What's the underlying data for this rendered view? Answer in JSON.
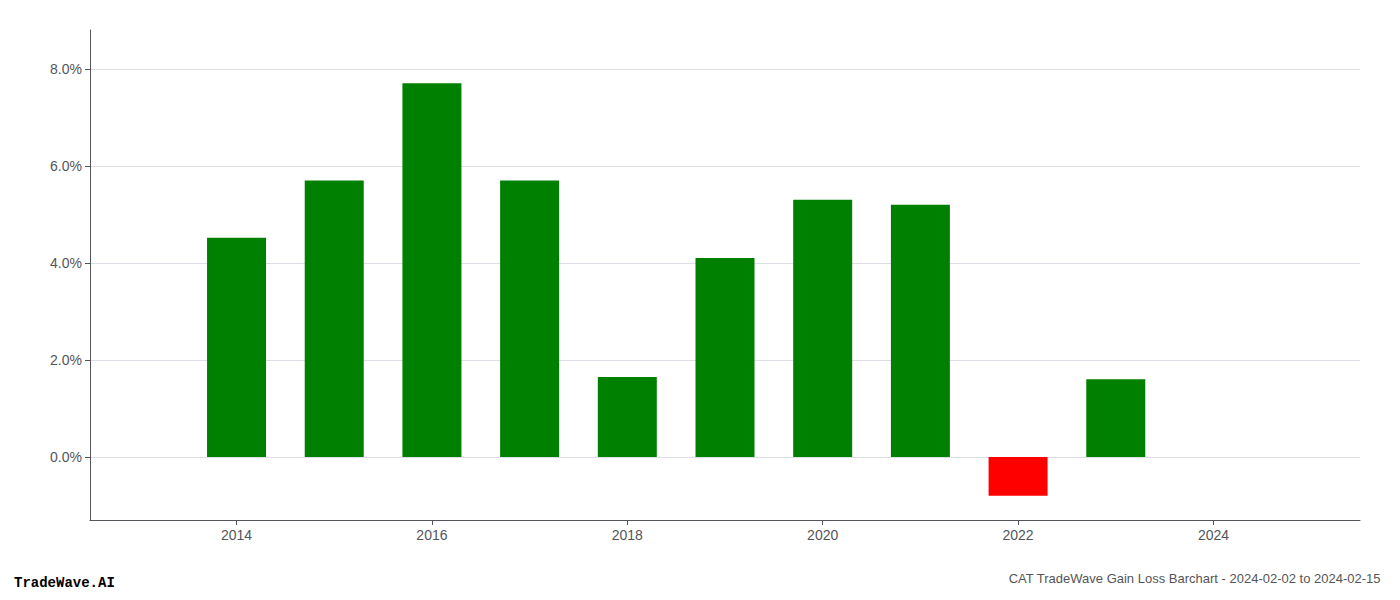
{
  "chart_data": {
    "type": "bar",
    "title": "CAT TradeWave Gain Loss Barchart - 2024-02-02 to 2024-02-15",
    "annotations": [
      "TradeWave.AI"
    ],
    "x": [
      2014,
      2015,
      2016,
      2017,
      2018,
      2019,
      2020,
      2021,
      2022,
      2023
    ],
    "values": [
      0.0452,
      0.057,
      0.077,
      0.057,
      0.0165,
      0.041,
      0.053,
      0.052,
      -0.008,
      0.016
    ],
    "colors": [
      "#008000",
      "#008000",
      "#008000",
      "#008000",
      "#008000",
      "#008000",
      "#008000",
      "#008000",
      "#ff0000",
      "#008000"
    ],
    "xlim": [
      2012.5,
      2025.5
    ],
    "xticks": [
      2014,
      2016,
      2018,
      2020,
      2022,
      2024
    ],
    "ylim": [
      -0.013,
      0.088
    ],
    "yticks": [
      {
        "value": 0,
        "label": "0.0%"
      },
      {
        "value": 0.02,
        "label": "2.0%"
      },
      {
        "value": 0.04,
        "label": "4.0%"
      },
      {
        "value": 0.06,
        "label": "6.0%"
      },
      {
        "value": 0.08,
        "label": "8.0%"
      }
    ],
    "grid": true
  }
}
